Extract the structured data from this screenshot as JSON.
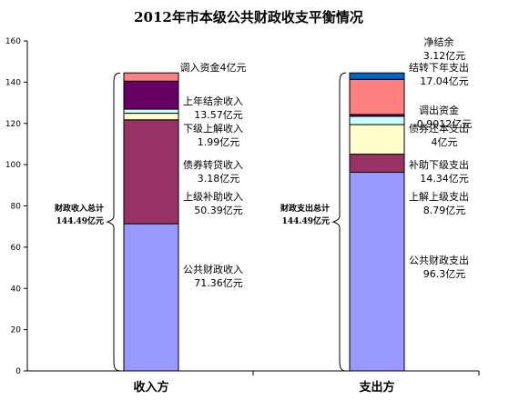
{
  "chart_data": {
    "type": "bar",
    "stacked": true,
    "title": "2012年市本级公共财政收支平衡情况",
    "categories": [
      "收入方",
      "支出方"
    ],
    "ylim": [
      0,
      160
    ],
    "yticks": [
      0,
      20,
      40,
      60,
      80,
      100,
      120,
      140,
      160
    ],
    "grid": false,
    "totals": [
      "财政收入总计144.49亿元",
      "财政支出总计144.49亿元"
    ],
    "series": [
      {
        "category": "收入方",
        "segments": [
          {
            "value": 71.36,
            "color": "#9999ff",
            "label": [
              "公共财政收入",
              "71.36亿元"
            ]
          },
          {
            "value": 50.39,
            "color": "#993366",
            "label": [
              "上级补助收入",
              "50.39亿元"
            ]
          },
          {
            "value": 3.18,
            "color": "#ffffcc",
            "label": [
              "债券转贷收入",
              "3.18亿元"
            ]
          },
          {
            "value": 1.99,
            "color": "#ccffff",
            "label": [
              "下级上解收入",
              "1.99亿元"
            ]
          },
          {
            "value": 13.57,
            "color": "#660066",
            "label": [
              "上年结余收入",
              "13.57亿元"
            ]
          },
          {
            "value": 4,
            "color": "#ff8080",
            "label": [
              "调入资金4亿元"
            ]
          }
        ]
      },
      {
        "category": "支出方",
        "segments": [
          {
            "value": 96.3,
            "color": "#9999ff",
            "label": [
              "公共财政支出",
              "96.3亿元"
            ]
          },
          {
            "value": 8.79,
            "color": "#993366",
            "label": [
              "上解上级支出",
              "8.79亿元"
            ]
          },
          {
            "value": 14.34,
            "color": "#ffffcc",
            "label": [
              "补助下级支出",
              "14.34亿元"
            ]
          },
          {
            "value": 4,
            "color": "#ccffff",
            "label": [
              "债券还本支出",
              "4亿元"
            ]
          },
          {
            "value": 0.9012,
            "color": "#660066",
            "label": [
              "调出资金",
              "0.9012亿元"
            ]
          },
          {
            "value": 17.04,
            "color": "#ff8080",
            "label": [
              "结转下年支出",
              "17.04亿元"
            ]
          },
          {
            "value": 3.12,
            "color": "#0066cc",
            "label": [
              "净结余",
              "3.12亿元"
            ]
          }
        ]
      }
    ]
  }
}
